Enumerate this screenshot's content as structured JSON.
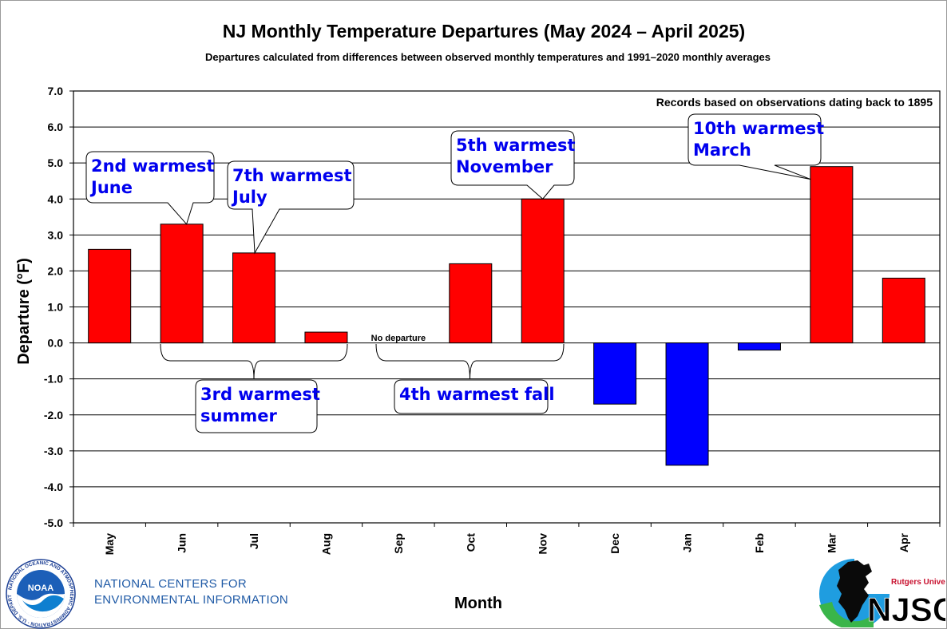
{
  "chart_data": {
    "type": "bar",
    "title": "NJ Monthly  Temperature  Departures  (May 2024 – April 2025)",
    "subtitle": "Departures calculated from differences between observed monthly temperatures and 1991–2020  monthly  averages",
    "xlabel": "Month",
    "ylabel": "Departure (°F)",
    "ylim": [
      -5.0,
      7.0
    ],
    "yticks": [
      "7.0",
      "6.0",
      "5.0",
      "4.0",
      "3.0",
      "2.0",
      "1.0",
      "0.0",
      "-1.0",
      "-2.0",
      "-3.0",
      "-4.0",
      "-5.0"
    ],
    "categories": [
      "May",
      "Jun",
      "Jul",
      "Aug",
      "Sep",
      "Oct",
      "Nov",
      "Dec",
      "Jan",
      "Feb",
      "Mar",
      "Apr"
    ],
    "values": [
      2.6,
      3.3,
      2.5,
      0.3,
      0.0,
      2.2,
      4.0,
      -1.7,
      -3.4,
      -0.2,
      4.9,
      1.8
    ],
    "grid": true,
    "colors": {
      "positive": "#ff0000",
      "negative": "#0000ff",
      "callout_text": "#0000ee"
    },
    "note_text": "Records based on observations dating back to 1895",
    "no_departure_label": "No departure",
    "callouts": [
      {
        "line1": "2nd warmest",
        "line2": "June"
      },
      {
        "line1": "7th warmest",
        "line2": "July"
      },
      {
        "line1": "5th warmest",
        "line2": "November"
      },
      {
        "line1": "10th warmest",
        "line2": "March"
      },
      {
        "line1": "3rd warmest",
        "line2": "summer"
      },
      {
        "line1": "4th warmest fall",
        "line2": ""
      }
    ]
  },
  "footer": {
    "ncei_line1": "NATIONAL CENTERS FOR",
    "ncei_line2": "ENVIRONMENTAL INFORMATION",
    "noaa_logo_text": "NOAA",
    "noaa_ring_text": "NATIONAL OCEANIC AND ATMOSPHERIC ADMINISTRATION · U.S. DEPARTMENT OF COMMERCE",
    "njsc_small": "Rutgers University",
    "njsc_big": "NJSC"
  }
}
